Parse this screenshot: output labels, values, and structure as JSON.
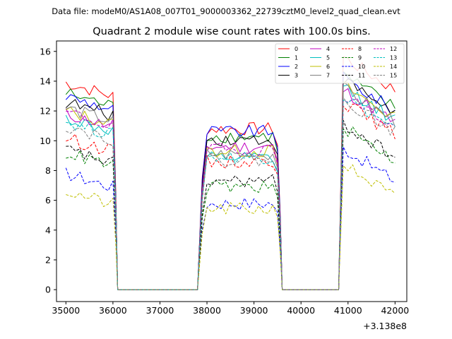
{
  "chart_data": {
    "type": "line",
    "suptitle": "Data file: modeM0/AS1A08_007T01_9000003362_22739cztM0_level2_quad_clean.evt",
    "title": "Quadrant 2 module wise count rates with 100.0s bins.",
    "xlabel": "",
    "ylabel": "",
    "x_offset_label": "+3.138e8",
    "xlim": [
      34800,
      42250
    ],
    "ylim": [
      -0.8,
      16.7
    ],
    "x_ticks": [
      35000,
      36000,
      37000,
      38000,
      39000,
      40000,
      41000,
      42000
    ],
    "y_ticks": [
      0,
      2,
      4,
      6,
      8,
      10,
      12,
      14,
      16
    ],
    "legend_location": "upper right",
    "legend_columns": 4,
    "segments": [
      {
        "start": 35000,
        "end": 36000
      },
      {
        "start": 37900,
        "end": 39500
      },
      {
        "start": 40900,
        "end": 42000
      }
    ],
    "series": [
      {
        "name": "0",
        "color": "#ff0000",
        "dashed": false,
        "levels": [
          13.9,
          10.8,
          14.8
        ]
      },
      {
        "name": "1",
        "color": "#008000",
        "dashed": false,
        "levels": [
          13.2,
          10.3,
          13.6
        ]
      },
      {
        "name": "2",
        "color": "#0000ff",
        "dashed": false,
        "levels": [
          13.0,
          10.6,
          13.4
        ]
      },
      {
        "name": "3",
        "color": "#000000",
        "dashed": false,
        "levels": [
          12.6,
          10.1,
          13.3
        ]
      },
      {
        "name": "4",
        "color": "#bf00bf",
        "dashed": false,
        "levels": [
          11.8,
          9.6,
          12.6
        ]
      },
      {
        "name": "5",
        "color": "#00bfbf",
        "dashed": false,
        "levels": [
          11.5,
          8.8,
          12.8
        ]
      },
      {
        "name": "6",
        "color": "#bfbf00",
        "dashed": false,
        "levels": [
          12.0,
          9.3,
          12.9
        ]
      },
      {
        "name": "7",
        "color": "#808080",
        "dashed": false,
        "levels": [
          12.2,
          9.1,
          12.7
        ]
      },
      {
        "name": "8",
        "color": "#ff0000",
        "dashed": true,
        "levels": [
          10.2,
          8.6,
          11.8
        ]
      },
      {
        "name": "9",
        "color": "#008000",
        "dashed": true,
        "levels": [
          9.2,
          6.9,
          10.1
        ]
      },
      {
        "name": "10",
        "color": "#0000ff",
        "dashed": true,
        "levels": [
          7.8,
          5.8,
          8.7
        ]
      },
      {
        "name": "11",
        "color": "#000000",
        "dashed": true,
        "levels": [
          9.4,
          7.3,
          10.3
        ]
      },
      {
        "name": "12",
        "color": "#bf00bf",
        "dashed": true,
        "levels": [
          11.9,
          9.4,
          12.3
        ]
      },
      {
        "name": "13",
        "color": "#00bfbf",
        "dashed": true,
        "levels": [
          11.3,
          8.9,
          12.2
        ]
      },
      {
        "name": "14",
        "color": "#bfbf00",
        "dashed": true,
        "levels": [
          6.6,
          5.4,
          7.6
        ]
      },
      {
        "name": "15",
        "color": "#808080",
        "dashed": true,
        "levels": [
          11.0,
          8.7,
          12.0
        ]
      }
    ]
  }
}
